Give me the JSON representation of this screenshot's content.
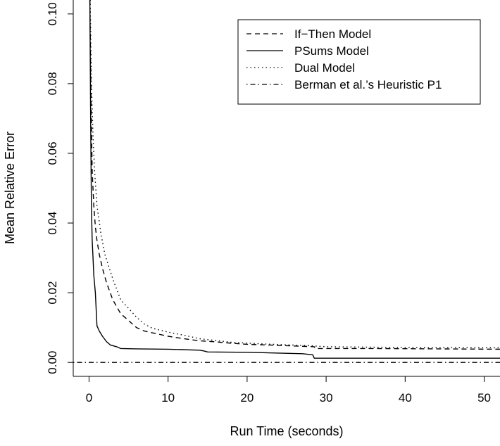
{
  "chart_data": {
    "type": "line",
    "title": "",
    "xlabel": "Run Time (seconds)",
    "ylabel": "Mean Relative Error",
    "xlim": [
      -2,
      52
    ],
    "ylim": [
      -0.004,
      0.104
    ],
    "x_ticks": [
      0,
      10,
      20,
      30,
      40,
      50
    ],
    "y_ticks": [
      0.0,
      0.02,
      0.04,
      0.06,
      0.08,
      0.1
    ],
    "x_tick_labels": [
      "0",
      "10",
      "20",
      "30",
      "40",
      "50"
    ],
    "y_tick_labels": [
      "0.00",
      "0.02",
      "0.04",
      "0.06",
      "0.08",
      "0.10"
    ],
    "grid": false,
    "legend_position": "top-right",
    "series": [
      {
        "name": "If−Then Model",
        "dash": "dashed",
        "color": "#000000",
        "points": [
          [
            0.1,
            0.104
          ],
          [
            0.25,
            0.075
          ],
          [
            0.4,
            0.055
          ],
          [
            0.6,
            0.045
          ],
          [
            0.8,
            0.039
          ],
          [
            1.0,
            0.035
          ],
          [
            1.3,
            0.031
          ],
          [
            1.7,
            0.027
          ],
          [
            2.2,
            0.023
          ],
          [
            3.0,
            0.018
          ],
          [
            4.0,
            0.014
          ],
          [
            5.0,
            0.012
          ],
          [
            6.0,
            0.01
          ],
          [
            7.0,
            0.009
          ],
          [
            8.0,
            0.0085
          ],
          [
            10.0,
            0.0075
          ],
          [
            12.0,
            0.0068
          ],
          [
            14.0,
            0.0062
          ],
          [
            15.5,
            0.006
          ],
          [
            18.0,
            0.0055
          ],
          [
            20.0,
            0.0052
          ],
          [
            25.0,
            0.0048
          ],
          [
            28.5,
            0.0045
          ],
          [
            28.6,
            0.004
          ],
          [
            35.0,
            0.004
          ],
          [
            52.0,
            0.0038
          ]
        ]
      },
      {
        "name": "PSums Model",
        "dash": "solid",
        "color": "#000000",
        "points": [
          [
            0.1,
            0.104
          ],
          [
            0.2,
            0.07
          ],
          [
            0.3,
            0.045
          ],
          [
            0.4,
            0.035
          ],
          [
            0.5,
            0.03
          ],
          [
            0.6,
            0.025
          ],
          [
            0.8,
            0.02
          ],
          [
            1.0,
            0.0105
          ],
          [
            1.3,
            0.009
          ],
          [
            1.7,
            0.0075
          ],
          [
            2.2,
            0.006
          ],
          [
            2.7,
            0.005
          ],
          [
            3.5,
            0.0045
          ],
          [
            4.0,
            0.004
          ],
          [
            6.0,
            0.0039
          ],
          [
            10.0,
            0.0038
          ],
          [
            14.0,
            0.0035
          ],
          [
            14.5,
            0.0033
          ],
          [
            15.0,
            0.003
          ],
          [
            20.0,
            0.0029
          ],
          [
            27.0,
            0.0025
          ],
          [
            28.3,
            0.0022
          ],
          [
            28.5,
            0.0012
          ],
          [
            35.0,
            0.0012
          ],
          [
            52.0,
            0.0012
          ]
        ]
      },
      {
        "name": "Dual Model",
        "dash": "dotted",
        "color": "#000000",
        "points": [
          [
            0.15,
            0.104
          ],
          [
            0.3,
            0.08
          ],
          [
            0.5,
            0.065
          ],
          [
            0.7,
            0.055
          ],
          [
            1.0,
            0.045
          ],
          [
            1.5,
            0.037
          ],
          [
            2.0,
            0.031
          ],
          [
            3.0,
            0.024
          ],
          [
            4.0,
            0.018
          ],
          [
            5.0,
            0.0155
          ],
          [
            6.0,
            0.013
          ],
          [
            7.0,
            0.011
          ],
          [
            8.0,
            0.0098
          ],
          [
            10.0,
            0.0087
          ],
          [
            12.0,
            0.0078
          ],
          [
            14.0,
            0.0068
          ],
          [
            18.0,
            0.0058
          ],
          [
            22.0,
            0.0053
          ],
          [
            28.0,
            0.0048
          ],
          [
            30.0,
            0.0045
          ],
          [
            40.0,
            0.0043
          ],
          [
            52.0,
            0.0042
          ]
        ]
      },
      {
        "name": "Berman et al.’s Heuristic P1",
        "dash": "dotdash",
        "color": "#000000",
        "points": [
          [
            -2,
            0.0
          ],
          [
            52,
            0.0
          ]
        ]
      }
    ]
  }
}
